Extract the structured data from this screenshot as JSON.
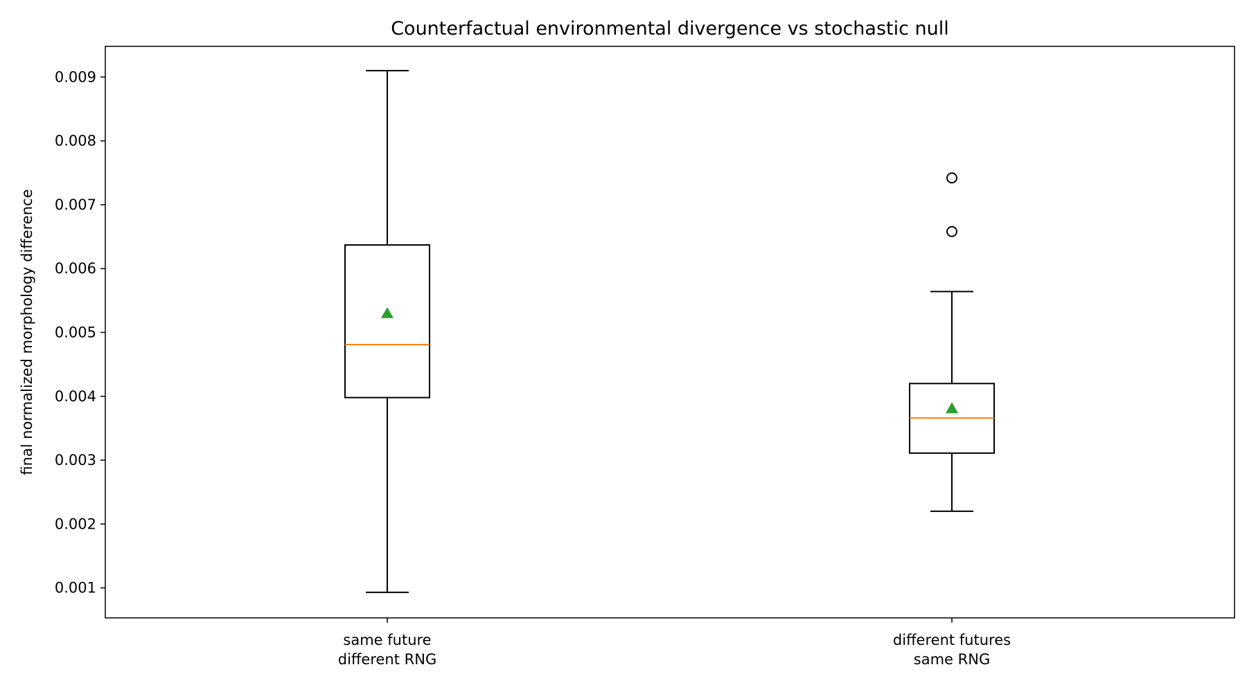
{
  "chart_data": {
    "type": "box",
    "title": "Counterfactual environmental divergence vs stochastic null",
    "xlabel": "",
    "ylabel": "final normalized morphology difference",
    "ylim": [
      0.00053,
      0.00948
    ],
    "yticks": [
      0.001,
      0.002,
      0.003,
      0.004,
      0.005,
      0.006,
      0.007,
      0.008,
      0.009
    ],
    "ytick_labels": [
      "0.001",
      "0.002",
      "0.003",
      "0.004",
      "0.005",
      "0.006",
      "0.007",
      "0.008",
      "0.009"
    ],
    "grid": false,
    "categories": [
      [
        "same future",
        "different RNG"
      ],
      [
        "different futures",
        "same RNG"
      ]
    ],
    "boxes": [
      {
        "whisker_low": 0.00093,
        "q1": 0.00398,
        "median": 0.00481,
        "q3": 0.00637,
        "whisker_high": 0.0091,
        "mean": 0.0053,
        "outliers": []
      },
      {
        "whisker_low": 0.0022,
        "q1": 0.00311,
        "median": 0.00366,
        "q3": 0.0042,
        "whisker_high": 0.00564,
        "mean": 0.00381,
        "outliers": [
          0.00658,
          0.00742
        ]
      }
    ],
    "colors": {
      "box": "#000000",
      "median": "#ff7f0e",
      "mean": "#2ca02c",
      "outlier": "#000000"
    }
  }
}
